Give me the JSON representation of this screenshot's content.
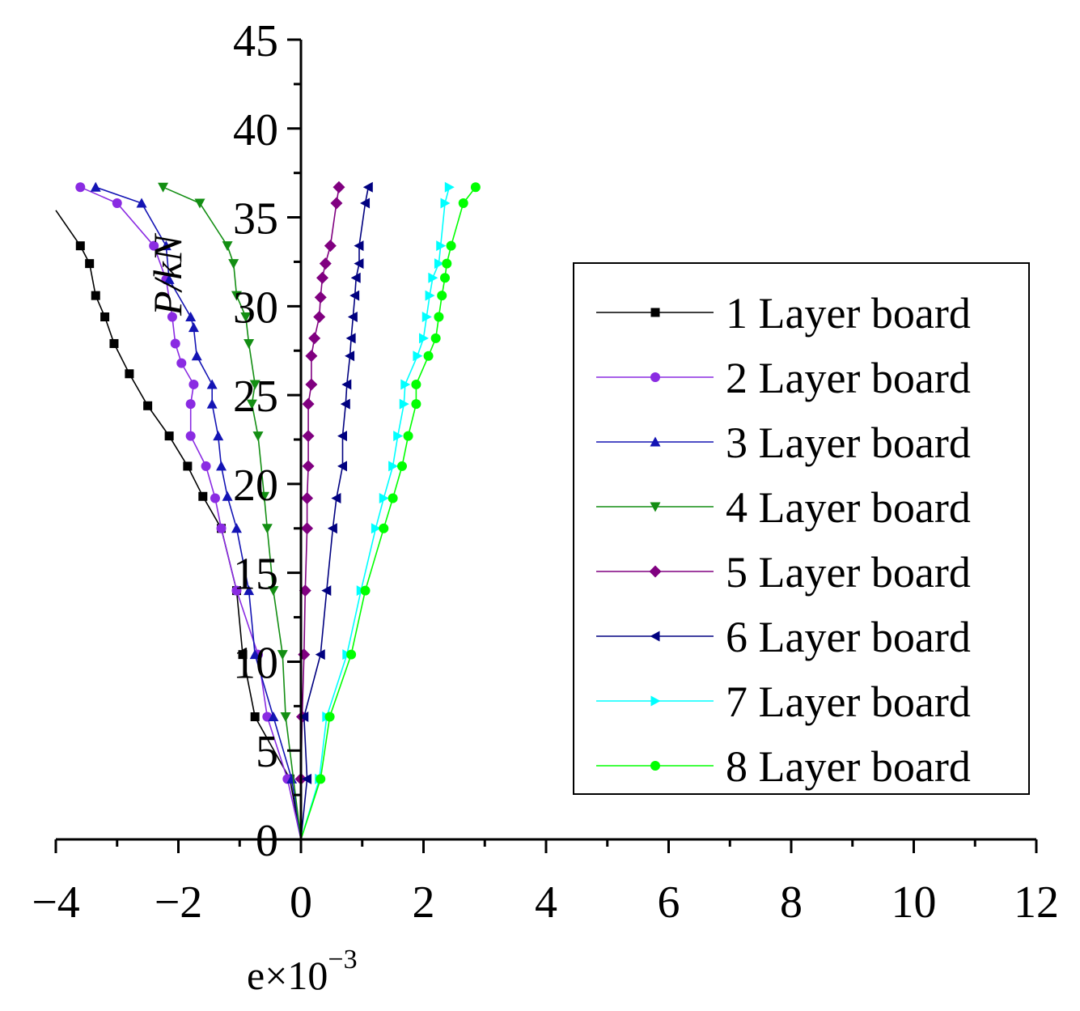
{
  "chart_data": {
    "type": "line",
    "title": "",
    "xlabel": "e×10",
    "xlabel_exponent": "−3",
    "ylabel": "P/kN",
    "xlim": [
      -4,
      12
    ],
    "ylim": [
      0,
      45
    ],
    "x_ticks": [
      -4,
      -2,
      0,
      2,
      4,
      6,
      8,
      10,
      12
    ],
    "x_tick_labels": [
      "−4",
      "−2",
      "0",
      "2",
      "4",
      "6",
      "8",
      "10",
      "12"
    ],
    "y_ticks": [
      0,
      5,
      10,
      15,
      20,
      25,
      30,
      35,
      40,
      45
    ],
    "y_tick_labels": [
      "0",
      "5",
      "10",
      "15",
      "20",
      "25",
      "30",
      "35",
      "40",
      "45"
    ],
    "grid": false,
    "legend_position": "right",
    "series": [
      {
        "name": "1 Layer board",
        "color": "#000000",
        "marker": "square",
        "points": [
          [
            0,
            0
          ],
          [
            -0.18,
            3.4
          ],
          [
            -0.75,
            6.9
          ],
          [
            -0.95,
            10.4
          ],
          [
            -1.05,
            14.0
          ],
          [
            -1.3,
            17.5
          ],
          [
            -1.6,
            19.3
          ],
          [
            -1.85,
            21.0
          ],
          [
            -2.15,
            22.7
          ],
          [
            -2.5,
            24.4
          ],
          [
            -2.8,
            26.2
          ],
          [
            -3.05,
            27.9
          ],
          [
            -3.2,
            29.4
          ],
          [
            -3.35,
            30.6
          ],
          [
            -3.45,
            32.4
          ],
          [
            -3.6,
            33.4
          ],
          [
            -4.0,
            35.4
          ]
        ]
      },
      {
        "name": "2 Layer board",
        "color": "#8a2be2",
        "marker": "circle",
        "points": [
          [
            0,
            0
          ],
          [
            -0.22,
            3.4
          ],
          [
            -0.55,
            6.9
          ],
          [
            -0.7,
            10.4
          ],
          [
            -1.05,
            14.0
          ],
          [
            -1.3,
            17.5
          ],
          [
            -1.4,
            19.2
          ],
          [
            -1.55,
            21.0
          ],
          [
            -1.8,
            22.7
          ],
          [
            -1.8,
            24.5
          ],
          [
            -1.75,
            25.6
          ],
          [
            -1.95,
            26.8
          ],
          [
            -2.05,
            27.9
          ],
          [
            -2.1,
            29.4
          ],
          [
            -2.2,
            31.5
          ],
          [
            -2.4,
            33.4
          ],
          [
            -3.0,
            35.8
          ],
          [
            -3.6,
            36.7
          ]
        ]
      },
      {
        "name": "3 Layer board",
        "color": "#1414b4",
        "marker": "triangle-up",
        "points": [
          [
            0,
            0
          ],
          [
            -0.15,
            3.4
          ],
          [
            -0.45,
            6.9
          ],
          [
            -0.75,
            10.4
          ],
          [
            -0.85,
            14.0
          ],
          [
            -1.05,
            17.5
          ],
          [
            -1.2,
            19.3
          ],
          [
            -1.3,
            21.0
          ],
          [
            -1.35,
            22.7
          ],
          [
            -1.45,
            24.5
          ],
          [
            -1.45,
            25.6
          ],
          [
            -1.7,
            27.2
          ],
          [
            -1.75,
            28.8
          ],
          [
            -1.8,
            29.4
          ],
          [
            -2.15,
            31.5
          ],
          [
            -2.2,
            33.4
          ],
          [
            -2.6,
            35.8
          ],
          [
            -3.35,
            36.7
          ]
        ]
      },
      {
        "name": "4 Layer board",
        "color": "#138e13",
        "marker": "triangle-down",
        "points": [
          [
            0,
            0
          ],
          [
            -0.25,
            6.9
          ],
          [
            -0.3,
            10.4
          ],
          [
            -0.45,
            14.0
          ],
          [
            -0.55,
            17.5
          ],
          [
            -0.6,
            19.3
          ],
          [
            -0.7,
            22.7
          ],
          [
            -0.8,
            24.5
          ],
          [
            -0.75,
            25.6
          ],
          [
            -0.85,
            27.9
          ],
          [
            -0.9,
            29.4
          ],
          [
            -1.05,
            30.6
          ],
          [
            -1.1,
            32.4
          ],
          [
            -1.2,
            33.4
          ],
          [
            -1.65,
            35.8
          ],
          [
            -2.25,
            36.7
          ]
        ]
      },
      {
        "name": "5 Layer board",
        "color": "#800080",
        "marker": "diamond",
        "points": [
          [
            0,
            0
          ],
          [
            0.0,
            3.4
          ],
          [
            0.02,
            6.9
          ],
          [
            0.05,
            10.4
          ],
          [
            0.07,
            14.0
          ],
          [
            0.1,
            17.5
          ],
          [
            0.1,
            19.2
          ],
          [
            0.12,
            21.0
          ],
          [
            0.12,
            22.7
          ],
          [
            0.12,
            24.5
          ],
          [
            0.17,
            25.6
          ],
          [
            0.17,
            27.2
          ],
          [
            0.22,
            28.2
          ],
          [
            0.3,
            29.4
          ],
          [
            0.32,
            30.5
          ],
          [
            0.35,
            31.6
          ],
          [
            0.4,
            32.4
          ],
          [
            0.48,
            33.4
          ],
          [
            0.58,
            35.8
          ],
          [
            0.62,
            36.7
          ]
        ]
      },
      {
        "name": "6 Layer board",
        "color": "#000080",
        "marker": "triangle-left",
        "points": [
          [
            0,
            0
          ],
          [
            0.1,
            3.4
          ],
          [
            0.05,
            6.9
          ],
          [
            0.32,
            10.4
          ],
          [
            0.42,
            14.0
          ],
          [
            0.52,
            17.5
          ],
          [
            0.58,
            19.2
          ],
          [
            0.68,
            21.0
          ],
          [
            0.68,
            22.7
          ],
          [
            0.73,
            24.5
          ],
          [
            0.75,
            25.6
          ],
          [
            0.8,
            27.2
          ],
          [
            0.82,
            28.2
          ],
          [
            0.85,
            29.4
          ],
          [
            0.88,
            30.6
          ],
          [
            0.9,
            31.6
          ],
          [
            0.95,
            32.4
          ],
          [
            0.95,
            33.4
          ],
          [
            1.05,
            35.8
          ],
          [
            1.1,
            36.7
          ]
        ]
      },
      {
        "name": "7 Layer board",
        "color": "#00ffff",
        "marker": "triangle-right",
        "points": [
          [
            0,
            0
          ],
          [
            0.3,
            3.4
          ],
          [
            0.42,
            6.9
          ],
          [
            0.75,
            10.4
          ],
          [
            0.98,
            14.0
          ],
          [
            1.22,
            17.5
          ],
          [
            1.35,
            19.2
          ],
          [
            1.5,
            21.0
          ],
          [
            1.58,
            22.7
          ],
          [
            1.68,
            24.5
          ],
          [
            1.7,
            25.6
          ],
          [
            1.9,
            27.2
          ],
          [
            2.0,
            28.2
          ],
          [
            2.05,
            29.4
          ],
          [
            2.1,
            30.6
          ],
          [
            2.15,
            31.6
          ],
          [
            2.25,
            32.4
          ],
          [
            2.28,
            33.4
          ],
          [
            2.35,
            35.8
          ],
          [
            2.42,
            36.7
          ]
        ]
      },
      {
        "name": "8 Layer board",
        "color": "#00ff00",
        "marker": "circle",
        "points": [
          [
            0,
            0
          ],
          [
            0.32,
            3.4
          ],
          [
            0.47,
            6.9
          ],
          [
            0.82,
            10.4
          ],
          [
            1.05,
            14.0
          ],
          [
            1.35,
            17.5
          ],
          [
            1.5,
            19.2
          ],
          [
            1.65,
            21.0
          ],
          [
            1.75,
            22.7
          ],
          [
            1.88,
            24.5
          ],
          [
            1.88,
            25.6
          ],
          [
            2.08,
            27.2
          ],
          [
            2.2,
            28.2
          ],
          [
            2.25,
            29.4
          ],
          [
            2.3,
            30.6
          ],
          [
            2.35,
            31.6
          ],
          [
            2.38,
            32.4
          ],
          [
            2.45,
            33.4
          ],
          [
            2.65,
            35.8
          ],
          [
            2.85,
            36.7
          ]
        ]
      }
    ]
  }
}
